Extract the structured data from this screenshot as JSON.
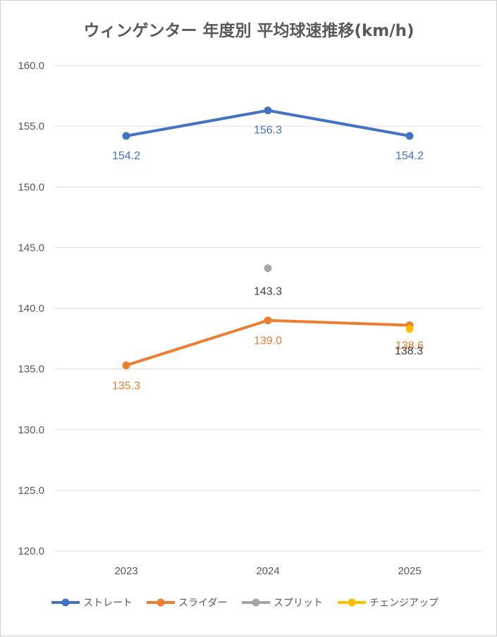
{
  "chart_data": {
    "type": "line",
    "title": "ウィンゲンター 年度別 平均球速推移(km/h)",
    "categories": [
      "2023",
      "2024",
      "2025"
    ],
    "ylim": [
      120,
      160
    ],
    "ytick_step": 5,
    "ytick_labels": [
      "120.0",
      "125.0",
      "130.0",
      "135.0",
      "140.0",
      "145.0",
      "150.0",
      "155.0",
      "160.0"
    ],
    "grid": true,
    "legend_position": "bottom",
    "series": [
      {
        "name": "ストレート",
        "color": "#4472C4",
        "values": [
          154.2,
          156.3,
          154.2
        ],
        "labels": [
          "154.2",
          "156.3",
          "154.2"
        ],
        "label_color": "#4472C4"
      },
      {
        "name": "スライダー",
        "color": "#ED7D31",
        "values": [
          135.3,
          139.0,
          138.6
        ],
        "labels": [
          "135.3",
          "139.0",
          "138.6"
        ],
        "label_color": "#ED7D31"
      },
      {
        "name": "スプリット",
        "color": "#A5A5A5",
        "values": [
          null,
          143.3,
          null
        ],
        "labels": [
          "",
          "143.3",
          ""
        ],
        "label_color": "#404040"
      },
      {
        "name": "チェンジアップ",
        "color": "#FFC000",
        "values": [
          null,
          null,
          138.3
        ],
        "labels": [
          "",
          "",
          "138.3"
        ],
        "label_color": "#404040"
      }
    ]
  }
}
